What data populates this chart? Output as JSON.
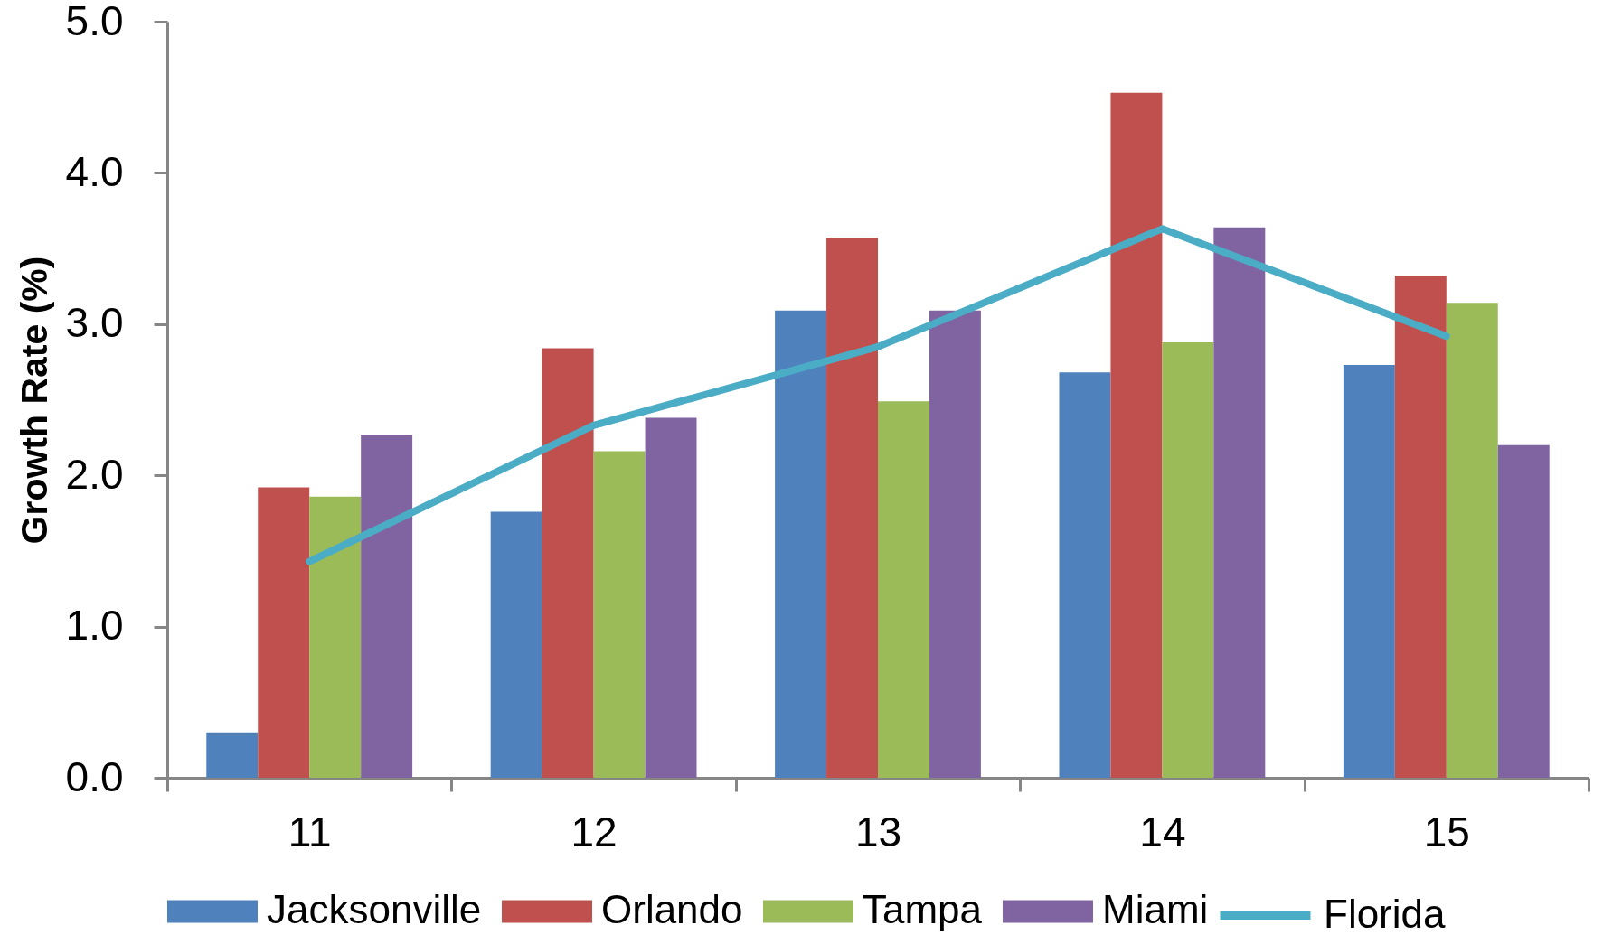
{
  "chart_data": {
    "type": "bar",
    "ylabel": "Growth Rate  (%)",
    "categories": [
      "11",
      "12",
      "13",
      "14",
      "15"
    ],
    "series": [
      {
        "name": "Jacksonville",
        "color": "#4f81bd",
        "values": [
          0.3,
          1.76,
          3.09,
          2.68,
          2.73
        ]
      },
      {
        "name": "Orlando",
        "color": "#c0504d",
        "values": [
          1.92,
          2.84,
          3.57,
          4.53,
          3.32
        ]
      },
      {
        "name": "Tampa",
        "color": "#9bbb59",
        "values": [
          1.86,
          2.16,
          2.49,
          2.88,
          3.14
        ]
      },
      {
        "name": "Miami",
        "color": "#8064a2",
        "values": [
          2.27,
          2.38,
          3.09,
          3.64,
          2.2
        ]
      },
      {
        "name": "Florida",
        "type": "line",
        "color": "#4bacc6",
        "values": [
          1.43,
          2.33,
          2.85,
          3.63,
          2.92
        ]
      }
    ],
    "ylim": [
      0,
      5
    ],
    "yticks": [
      {
        "value": 0,
        "label": "0.0"
      },
      {
        "value": 1,
        "label": "1.0"
      },
      {
        "value": 2,
        "label": "2.0"
      },
      {
        "value": 3,
        "label": "3.0"
      },
      {
        "value": 4,
        "label": "4.0"
      },
      {
        "value": 5,
        "label": "5.0"
      }
    ],
    "grid": false,
    "legend": "bottom",
    "marker": "none",
    "line_style": "solid"
  }
}
